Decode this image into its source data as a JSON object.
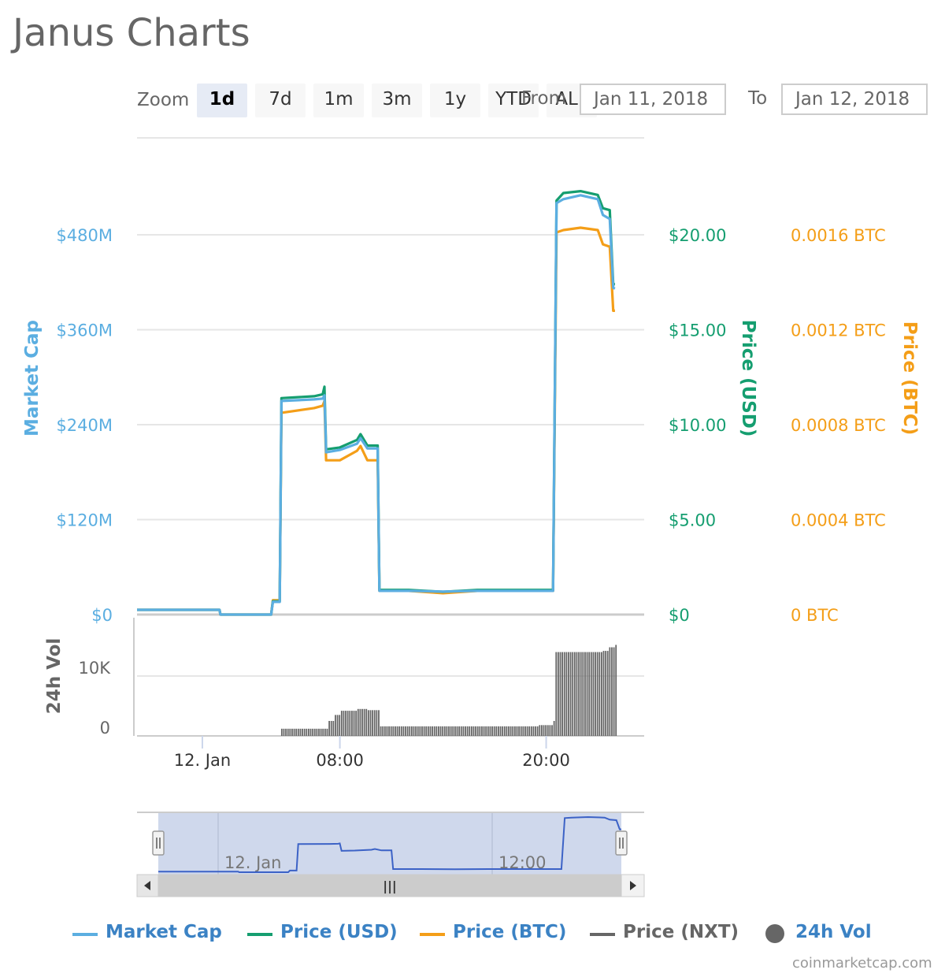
{
  "title": "Janus Charts",
  "zoom": {
    "label": "Zoom",
    "buttons": [
      "1d",
      "7d",
      "1m",
      "3m",
      "1y",
      "YTD",
      "ALL"
    ],
    "active": "1d"
  },
  "range": {
    "from_label": "From",
    "from_value": "Jan 11, 2018",
    "to_label": "To",
    "to_value": "Jan 12, 2018"
  },
  "colors": {
    "market_cap": "#5baee1",
    "price_usd": "#159e70",
    "price_btc": "#f49e18",
    "price_nxt": "#666666",
    "volume": "#666666",
    "navigator_line": "#3c62c6",
    "navigator_fill": "#ccd6eb"
  },
  "chart_data": {
    "type": "line",
    "x_tick_labels": [
      "12. Jan",
      "08:00",
      "20:00"
    ],
    "x_range_hours": [
      -3.8,
      25.7
    ],
    "axes": {
      "market_cap": {
        "title": "Market Cap",
        "ticks": [
          "$0",
          "$120M",
          "$240M",
          "$360M",
          "$480M"
        ],
        "range": [
          0,
          480
        ]
      },
      "price_usd": {
        "title": "Price (USD)",
        "ticks": [
          "$0",
          "$5.00",
          "$10.00",
          "$15.00",
          "$20.00"
        ],
        "range": [
          0,
          20
        ]
      },
      "price_btc": {
        "title": "Price (BTC)",
        "ticks": [
          "0 BTC",
          "0.0004 BTC",
          "0.0008 BTC",
          "0.0012 BTC",
          "0.0016 BTC"
        ],
        "range": [
          0,
          0.0016
        ]
      },
      "volume": {
        "title": "24h Vol",
        "ticks": [
          "0",
          "10K"
        ],
        "range": [
          0,
          10000
        ]
      }
    },
    "series": [
      {
        "name": "Market Cap",
        "key": "market_cap",
        "points": [
          [
            -3.8,
            6
          ],
          [
            1,
            6
          ],
          [
            1.05,
            0
          ],
          [
            4,
            0
          ],
          [
            4.1,
            16
          ],
          [
            4.5,
            16
          ],
          [
            4.6,
            270
          ],
          [
            6.5,
            272
          ],
          [
            7,
            273
          ],
          [
            7.1,
            277
          ],
          [
            7.2,
            205
          ],
          [
            8,
            208
          ],
          [
            9,
            216
          ],
          [
            9.2,
            223
          ],
          [
            9.6,
            210
          ],
          [
            10.2,
            210
          ],
          [
            10.3,
            30
          ],
          [
            12,
            30
          ],
          [
            14,
            29
          ],
          [
            16,
            30
          ],
          [
            20,
            30
          ],
          [
            20.4,
            30
          ],
          [
            20.6,
            520
          ],
          [
            21,
            525
          ],
          [
            22,
            530
          ],
          [
            23,
            525
          ],
          [
            23.3,
            505
          ],
          [
            23.7,
            500
          ],
          [
            23.9,
            413
          ],
          [
            24,
            412
          ]
        ]
      },
      {
        "name": "Price (USD)",
        "key": "price_usd",
        "points": [
          [
            -3.8,
            0.25
          ],
          [
            1,
            0.25
          ],
          [
            1.05,
            0
          ],
          [
            4,
            0
          ],
          [
            4.1,
            0.7
          ],
          [
            4.5,
            0.7
          ],
          [
            4.6,
            11.4
          ],
          [
            6.5,
            11.5
          ],
          [
            7,
            11.6
          ],
          [
            7.1,
            12.0
          ],
          [
            7.2,
            8.7
          ],
          [
            8,
            8.8
          ],
          [
            9,
            9.2
          ],
          [
            9.2,
            9.5
          ],
          [
            9.6,
            8.9
          ],
          [
            10.2,
            8.9
          ],
          [
            10.3,
            1.3
          ],
          [
            12,
            1.3
          ],
          [
            14,
            1.2
          ],
          [
            16,
            1.3
          ],
          [
            20,
            1.3
          ],
          [
            20.4,
            1.3
          ],
          [
            20.6,
            21.8
          ],
          [
            21,
            22.2
          ],
          [
            22,
            22.3
          ],
          [
            23,
            22.1
          ],
          [
            23.3,
            21.4
          ],
          [
            23.7,
            21.3
          ],
          [
            23.9,
            17.4
          ],
          [
            24,
            17.4
          ]
        ]
      },
      {
        "name": "Price (BTC)",
        "key": "price_btc",
        "points": [
          [
            -3.8,
            2e-05
          ],
          [
            1,
            2e-05
          ],
          [
            1.05,
            0
          ],
          [
            4,
            0
          ],
          [
            4.1,
            6e-05
          ],
          [
            4.5,
            6e-05
          ],
          [
            4.6,
            0.00085
          ],
          [
            6.5,
            0.00087
          ],
          [
            7,
            0.00088
          ],
          [
            7.1,
            0.0009
          ],
          [
            7.2,
            0.00065
          ],
          [
            8,
            0.00065
          ],
          [
            9,
            0.00069
          ],
          [
            9.2,
            0.00071
          ],
          [
            9.6,
            0.00065
          ],
          [
            10.2,
            0.00065
          ],
          [
            10.3,
            0.0001
          ],
          [
            12,
            0.0001
          ],
          [
            14,
            9e-05
          ],
          [
            16,
            0.0001
          ],
          [
            20,
            0.0001
          ],
          [
            20.4,
            0.0001
          ],
          [
            20.6,
            0.00161
          ],
          [
            21,
            0.00162
          ],
          [
            22,
            0.00163
          ],
          [
            23,
            0.00162
          ],
          [
            23.3,
            0.00156
          ],
          [
            23.7,
            0.00155
          ],
          [
            23.9,
            0.00128
          ],
          [
            24,
            0.00128
          ]
        ]
      },
      {
        "name": "Price (NXT)",
        "key": "price_nxt",
        "points": []
      },
      {
        "name": "24h Vol",
        "key": "volume",
        "type": "column",
        "points": [
          [
            -3.8,
            0
          ],
          [
            4.2,
            0
          ],
          [
            4.5,
            1200
          ],
          [
            7.0,
            1200
          ],
          [
            7.3,
            2500
          ],
          [
            7.6,
            3500
          ],
          [
            8.0,
            4200
          ],
          [
            9.0,
            4500
          ],
          [
            9.5,
            4300
          ],
          [
            10.3,
            1600
          ],
          [
            15.0,
            1600
          ],
          [
            19.5,
            1800
          ],
          [
            20.3,
            2500
          ],
          [
            20.5,
            14000
          ],
          [
            23.2,
            14200
          ],
          [
            23.6,
            14800
          ],
          [
            24.0,
            15200
          ]
        ]
      }
    ],
    "navigator": {
      "x_tick_labels": [
        "12. Jan",
        "12:00"
      ],
      "scrollbar_grip": "|||"
    }
  },
  "legend": {
    "items": [
      {
        "label": "Market Cap",
        "key": "market_cap",
        "marker": "line"
      },
      {
        "label": "Price (USD)",
        "key": "price_usd",
        "marker": "line"
      },
      {
        "label": "Price (BTC)",
        "key": "price_btc",
        "marker": "line"
      },
      {
        "label": "Price (NXT)",
        "key": "price_nxt",
        "marker": "line"
      },
      {
        "label": "24h Vol",
        "key": "volume",
        "marker": "circle"
      }
    ]
  },
  "credits": "coinmarketcap.com"
}
